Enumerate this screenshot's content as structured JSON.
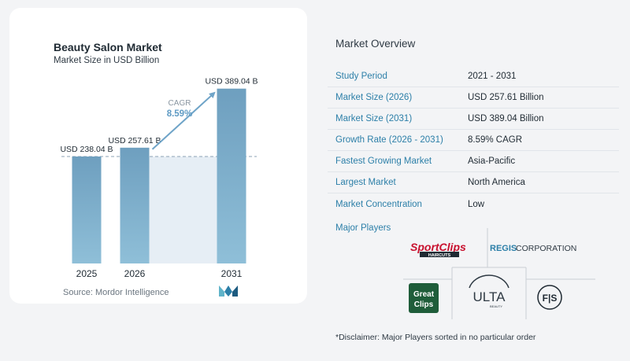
{
  "chart": {
    "title": "Beauty Salon Market",
    "subtitle": "Market Size in USD Billion",
    "source": "Source: Mordor Intelligence",
    "cagr_label": "CAGR",
    "cagr_value": "8.59%"
  },
  "chart_data": {
    "type": "bar",
    "title": "Beauty Salon Market",
    "subtitle": "Market Size in USD Billion",
    "categories": [
      "2025",
      "2026",
      "2031"
    ],
    "values": [
      238.04,
      257.61,
      389.04
    ],
    "data_labels": [
      "USD 238.04 B",
      "USD 257.61 B",
      "USD 389.04 B"
    ],
    "ylim": [
      0,
      420
    ],
    "grid": false,
    "colors": {
      "bar_top": "#6e9fbf",
      "bar_bottom": "#8fbfd8",
      "shade": "#e6eef5",
      "arrow": "#6fa4c8",
      "cagr": "#5f9bc4"
    }
  },
  "overview": {
    "title": "Market Overview",
    "rows": [
      {
        "key": "Study Period",
        "value": "2021 - 2031"
      },
      {
        "key": "Market Size (2026)",
        "value": "USD 257.61 Billion"
      },
      {
        "key": "Market Size (2031)",
        "value": "USD 389.04 Billion"
      },
      {
        "key": "Growth Rate (2026 - 2031)",
        "value": "8.59% CAGR"
      },
      {
        "key": "Fastest Growing Market",
        "value": "Asia-Pacific"
      },
      {
        "key": "Largest Market",
        "value": "North America"
      },
      {
        "key": "Market Concentration",
        "value": "Low"
      }
    ]
  },
  "players": {
    "title": "Major Players",
    "logos": {
      "sportclips": "SportClips",
      "sportclips_sub": "HAIRCUTS",
      "regis": "REGIS",
      "regis_sub": "CORPORATION",
      "greatclips_1": "Great",
      "greatclips_2": "Clips",
      "ulta": "ULTA",
      "ulta_sub": "BEAUTY",
      "fs": "F|S"
    },
    "disclaimer": "*Disclaimer: Major Players sorted in no particular order"
  }
}
